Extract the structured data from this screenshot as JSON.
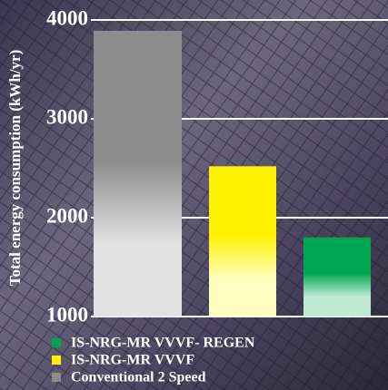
{
  "chart_data": {
    "type": "bar",
    "y_label": "Total energy consumption (kWh/yr)",
    "series": [
      {
        "name": "IS-NRG-MR VVVF- REGEN",
        "color": "#00a651",
        "values": [
          1800
        ]
      },
      {
        "name": "IS-NRG-MR VVVF",
        "color": "#fff200",
        "values": [
          2520
        ]
      },
      {
        "name": "Conventional 2 Speed",
        "color": "#8c8c8c",
        "values": [
          3890
        ]
      }
    ],
    "ylim": [
      1000,
      4000
    ],
    "yticks": [
      1000,
      2000,
      3000,
      4000
    ],
    "grid": true
  }
}
